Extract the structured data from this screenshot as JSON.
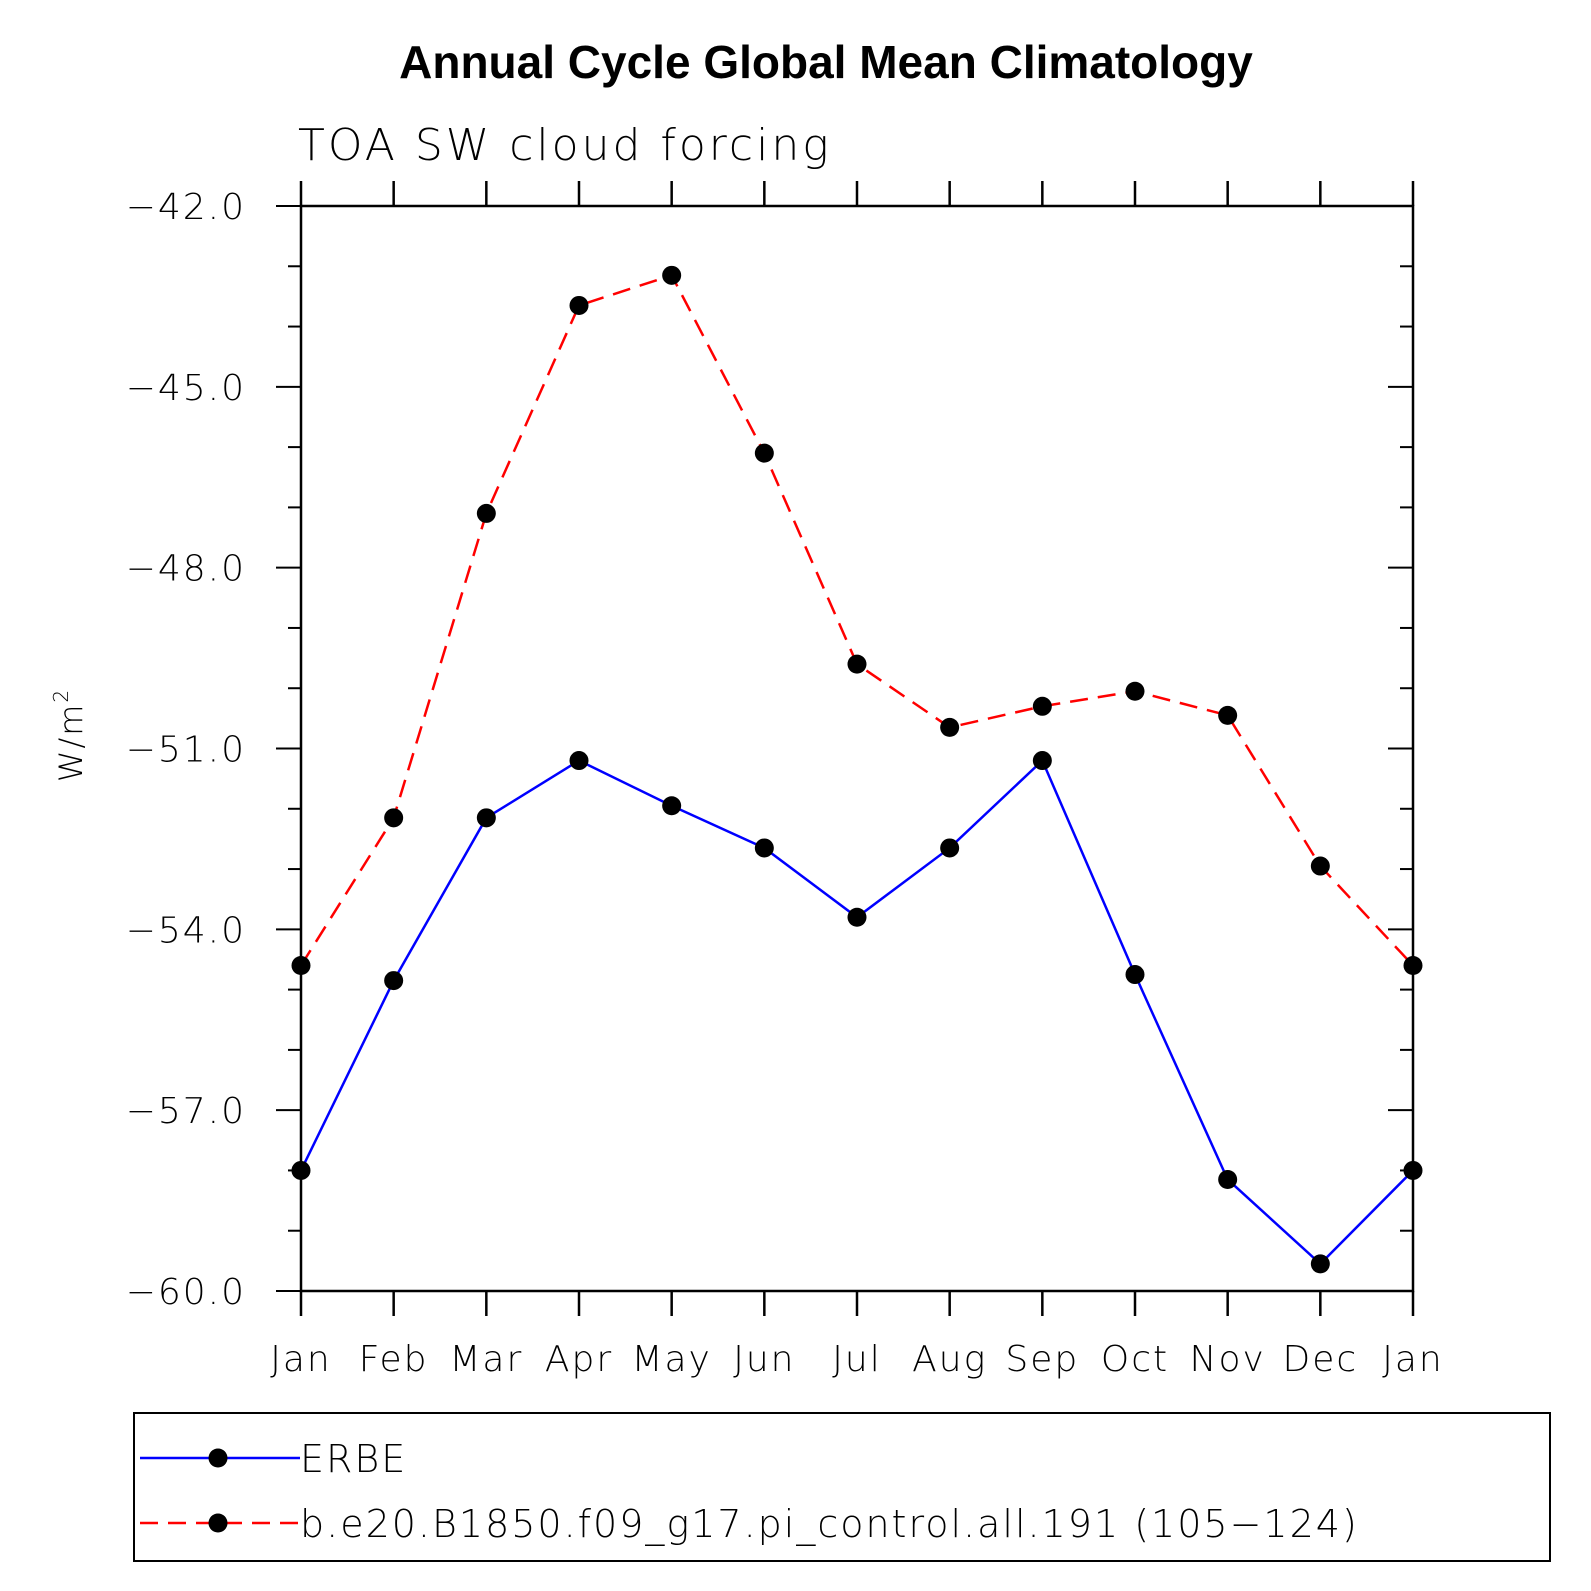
{
  "chart_data": {
    "type": "line",
    "title": "Annual Cycle Global Mean Climatology",
    "subtitle": "TOA SW cloud forcing",
    "ylabel": "W/m",
    "ylabel_superscript": "2",
    "xlabel": "",
    "categories": [
      "Jan",
      "Feb",
      "Mar",
      "Apr",
      "May",
      "Jun",
      "Jul",
      "Aug",
      "Sep",
      "Oct",
      "Nov",
      "Dec",
      "Jan"
    ],
    "ylim": [
      -60.0,
      -42.0
    ],
    "yticks": [
      -42.0,
      -45.0,
      -48.0,
      -51.0,
      -54.0,
      -57.0,
      -60.0
    ],
    "ytick_labels": [
      "−42.0",
      "−45.0",
      "−48.0",
      "−51.0",
      "−54.0",
      "−57.0",
      "−60.0"
    ],
    "grid": false,
    "legend_position": "bottom",
    "series": [
      {
        "name": "ERBE",
        "color": "#0000ff",
        "dash": "solid",
        "values": [
          -58.0,
          -54.85,
          -52.15,
          -51.2,
          -51.95,
          -52.65,
          -53.8,
          -52.65,
          -51.2,
          -54.75,
          -58.15,
          -59.55,
          -58.0
        ]
      },
      {
        "name": "b.e20.B1850.f09_g17.pi_control.all.191 (105−124)",
        "color": "#ff0000",
        "dash": "dashed",
        "values": [
          -54.6,
          -52.15,
          -47.1,
          -43.65,
          -43.15,
          -46.1,
          -49.6,
          -50.65,
          -50.3,
          -50.05,
          -50.45,
          -52.95,
          -54.6
        ]
      }
    ],
    "marker_color": "#000000"
  }
}
